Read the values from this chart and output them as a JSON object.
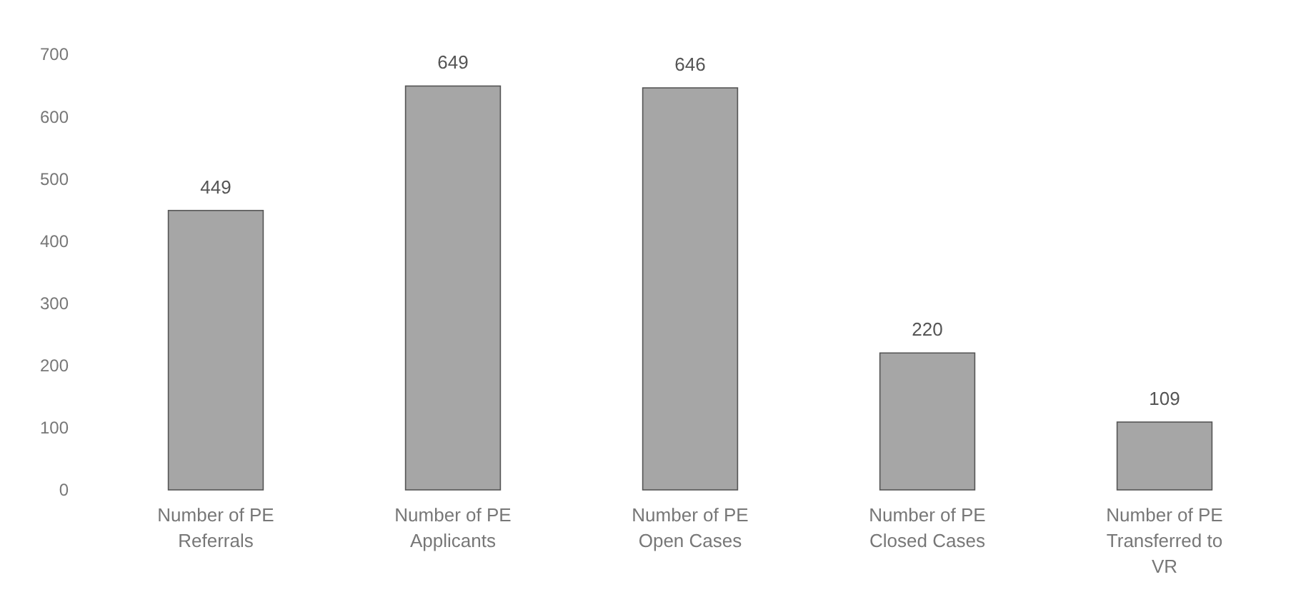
{
  "chart_data": {
    "type": "bar",
    "categories": [
      "Number of PE Referrals",
      "Number of PE Applicants",
      "Number of PE Open Cases",
      "Number of PE Closed Cases",
      "Number of PE Transferred to VR"
    ],
    "values": [
      449,
      649,
      646,
      220,
      109
    ],
    "color": "#a6a6a6",
    "ylim": [
      0,
      700
    ],
    "yticks": [
      0,
      100,
      200,
      300,
      400,
      500,
      600,
      700
    ],
    "data_labels": true,
    "grid": false
  }
}
